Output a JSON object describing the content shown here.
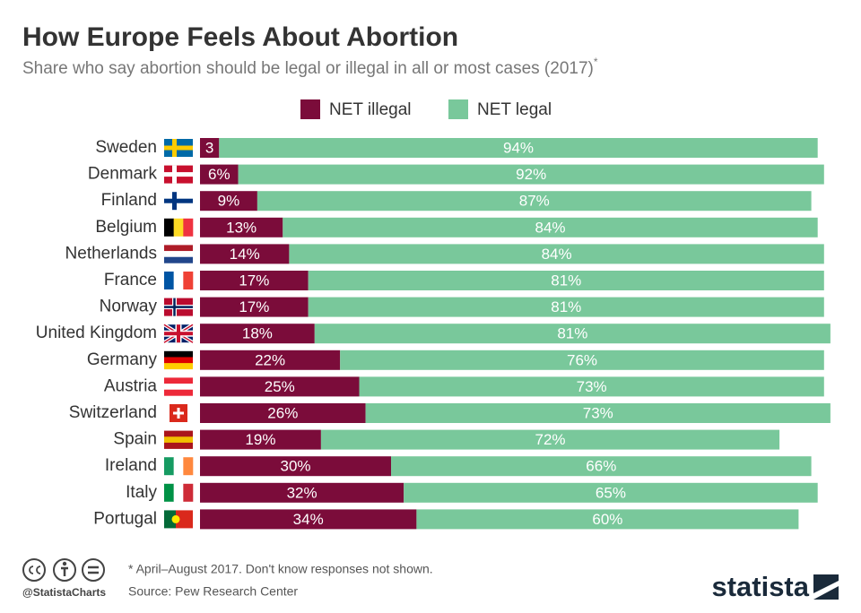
{
  "chart_data": {
    "type": "stacked-bar-horizontal",
    "title": "How Europe Feels About Abortion",
    "subtitle": "Share who say abortion should be legal or illegal in all or most cases (2017)",
    "subtitle_marker": "*",
    "categories": [
      "Sweden",
      "Denmark",
      "Finland",
      "Belgium",
      "Netherlands",
      "France",
      "Norway",
      "United Kingdom",
      "Germany",
      "Austria",
      "Switzerland",
      "Spain",
      "Ireland",
      "Italy",
      "Portugal"
    ],
    "series": [
      {
        "name": "NET illegal",
        "color": "#7b0c3a",
        "values": [
          3,
          6,
          9,
          13,
          14,
          17,
          17,
          18,
          22,
          25,
          26,
          19,
          30,
          32,
          34
        ],
        "value_labels": [
          "3",
          "6%",
          "9%",
          "13%",
          "14%",
          "17%",
          "17%",
          "18%",
          "22%",
          "25%",
          "26%",
          "19%",
          "30%",
          "32%",
          "34%"
        ]
      },
      {
        "name": "NET legal",
        "color": "#79c89b",
        "values": [
          94,
          92,
          87,
          84,
          84,
          81,
          81,
          81,
          76,
          73,
          73,
          72,
          66,
          65,
          60
        ],
        "value_labels": [
          "94%",
          "92%",
          "87%",
          "84%",
          "84%",
          "81%",
          "81%",
          "81%",
          "76%",
          "73%",
          "73%",
          "72%",
          "66%",
          "65%",
          "60%"
        ]
      }
    ],
    "xlim": [
      0,
      100
    ],
    "note": "* April–August 2017. Don't know responses not shown.",
    "source": "Source: Pew Research Center",
    "credit": "@StatistaCharts",
    "brand": "statista"
  }
}
